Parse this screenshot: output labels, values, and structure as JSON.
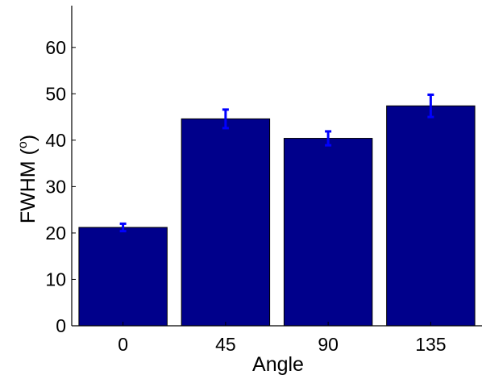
{
  "chart_data": {
    "type": "bar",
    "categories": [
      "0",
      "45",
      "90",
      "135"
    ],
    "values": [
      21.2,
      44.6,
      40.4,
      47.4
    ],
    "error_bars": [
      0.8,
      2.0,
      1.5,
      2.4
    ],
    "xlabel": "Angle",
    "ylabel": "FWHM (",
    "ylabel_superscript": "o",
    "ylabel_suffix": ")",
    "ylim": [
      0,
      69
    ],
    "y_ticks": [
      0,
      10,
      20,
      30,
      40,
      50,
      60
    ],
    "bar_color": "#00008b",
    "error_bar_color": "#0000ff",
    "grid": false
  }
}
